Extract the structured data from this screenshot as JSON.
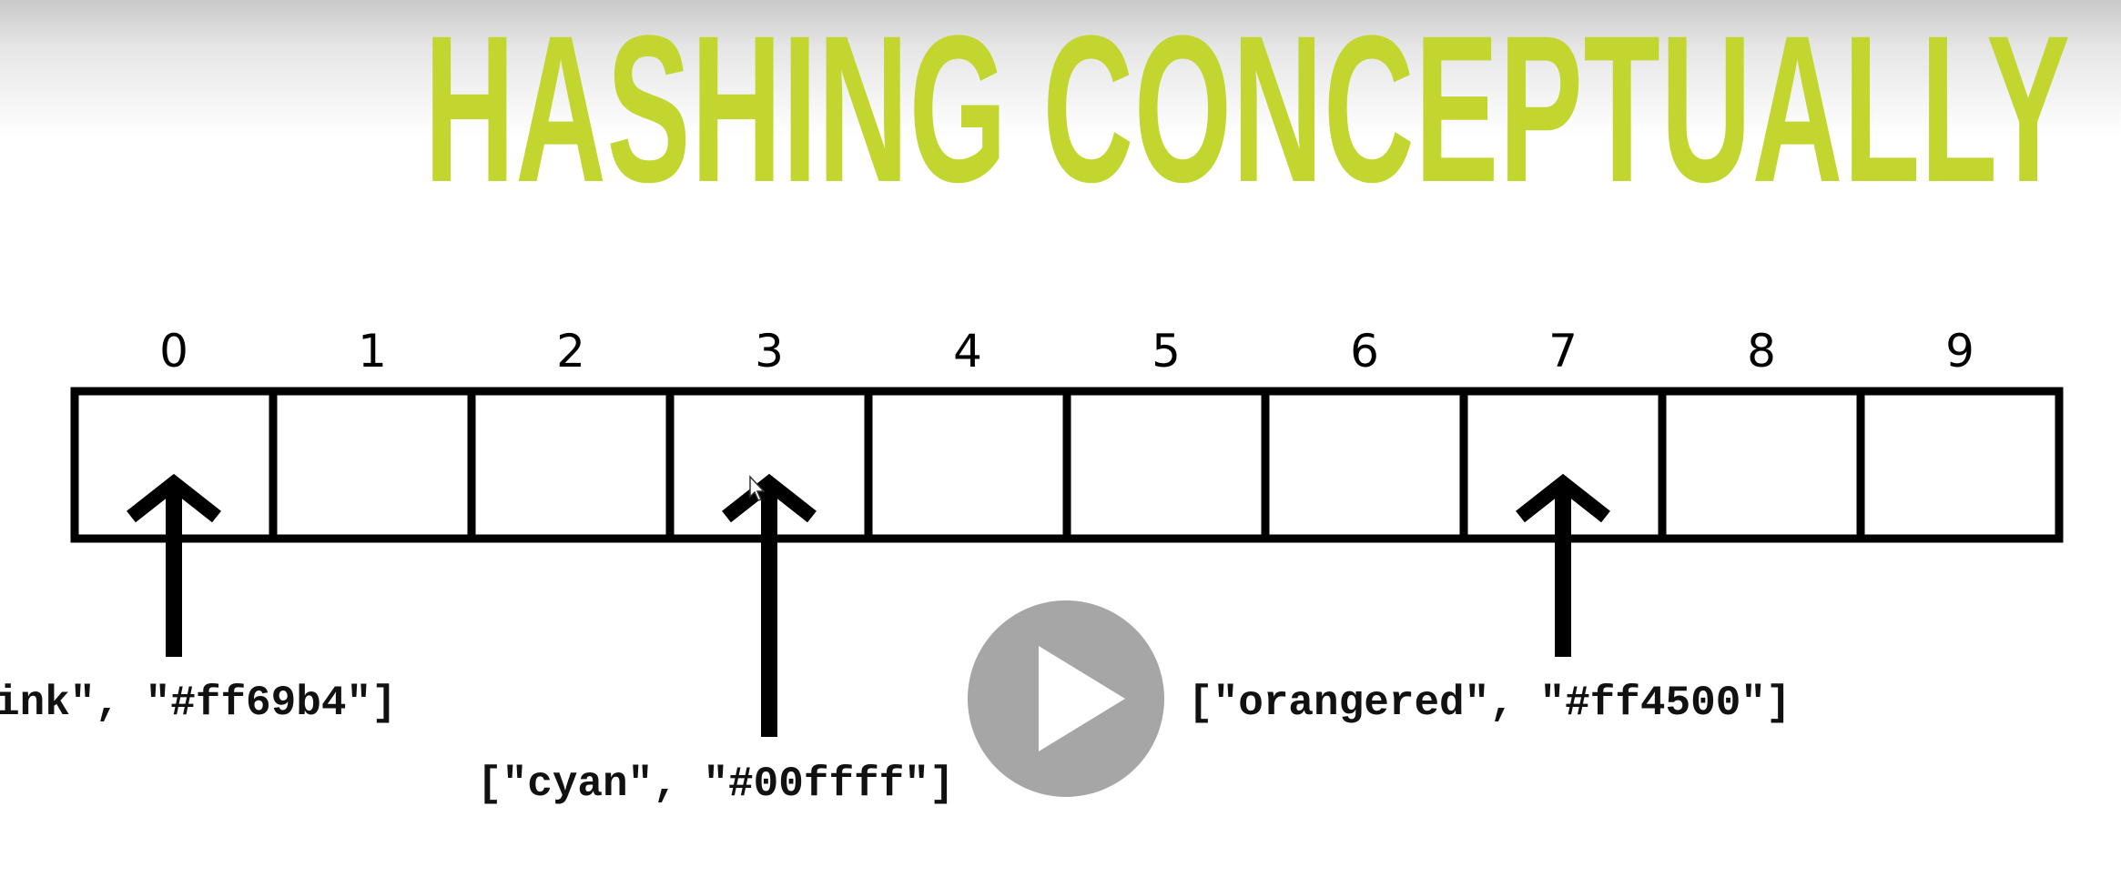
{
  "slide": {
    "title": "HASHING CONCEPTUALLY",
    "title_color": "#c2d62f"
  },
  "array": {
    "indices": [
      "0",
      "1",
      "2",
      "3",
      "4",
      "5",
      "6",
      "7",
      "8",
      "9"
    ]
  },
  "pointers": [
    {
      "target_index": 0,
      "label": "ink\", \"#ff69b4\"]"
    },
    {
      "target_index": 3,
      "label": "[\"cyan\", \"#00ffff\"]"
    },
    {
      "target_index": 7,
      "label": "[\"orangered\", \"#ff4500\"]"
    }
  ],
  "player": {
    "play_icon": "play-icon",
    "cursor_icon": "mouse-cursor-icon"
  }
}
